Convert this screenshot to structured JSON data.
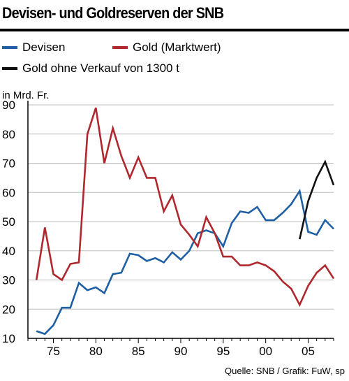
{
  "chart_data": {
    "type": "line",
    "title": "Devisen- und Goldreserven der SNB",
    "ylabel": "in Mrd. Fr.",
    "source": "Quelle: SNB / Grafik: FuW, sp",
    "xlim": [
      1972,
      2008
    ],
    "ylim": [
      10,
      90
    ],
    "legend_position": "top",
    "grid": true,
    "x_ticks": [
      {
        "value": 1975,
        "label": "75"
      },
      {
        "value": 1980,
        "label": "80"
      },
      {
        "value": 1985,
        "label": "85"
      },
      {
        "value": 1990,
        "label": "90"
      },
      {
        "value": 1995,
        "label": "95"
      },
      {
        "value": 2000,
        "label": "00"
      },
      {
        "value": 2005,
        "label": "05"
      }
    ],
    "y_ticks": [
      10,
      20,
      30,
      40,
      50,
      60,
      70,
      80,
      90
    ],
    "series": [
      {
        "name": "Devisen",
        "color": "#1f5fa3",
        "x": [
          1973,
          1974,
          1975,
          1976,
          1977,
          1978,
          1979,
          1980,
          1981,
          1982,
          1983,
          1984,
          1985,
          1986,
          1987,
          1988,
          1989,
          1990,
          1991,
          1992,
          1993,
          1994,
          1995,
          1996,
          1997,
          1998,
          1999,
          2000,
          2001,
          2002,
          2003,
          2004,
          2005,
          2006,
          2007,
          2008
        ],
        "y": [
          12.5,
          11.5,
          14.5,
          20.5,
          20.5,
          29,
          26.5,
          27.5,
          25.5,
          32,
          32.5,
          39,
          38.5,
          36.5,
          37.5,
          36,
          39.5,
          37,
          40,
          46,
          47,
          46,
          41.5,
          49.5,
          53.5,
          53,
          55,
          50.5,
          50.5,
          53,
          56,
          60.5,
          46.5,
          45.5,
          50.5,
          47.5
        ]
      },
      {
        "name": "Gold (Marktwert)",
        "color": "#b0282e",
        "x": [
          1973,
          1974,
          1975,
          1976,
          1977,
          1978,
          1979,
          1980,
          1981,
          1982,
          1983,
          1984,
          1985,
          1986,
          1987,
          1988,
          1989,
          1990,
          1991,
          1992,
          1993,
          1994,
          1995,
          1996,
          1997,
          1998,
          1999,
          2000,
          2001,
          2002,
          2003,
          2004,
          2005,
          2006,
          2007,
          2008
        ],
        "y": [
          30,
          48,
          32,
          30,
          35.5,
          36,
          80,
          89,
          70,
          82,
          72.5,
          65,
          72,
          65,
          65,
          53.5,
          59,
          49,
          45.5,
          41.5,
          51.5,
          46,
          38,
          38,
          35,
          35,
          36,
          35,
          33,
          29.5,
          27,
          21.5,
          28,
          32.5,
          35,
          30.5
        ]
      },
      {
        "name": "Gold ohne Verkauf von 1300 t",
        "color": "#111111",
        "x": [
          2004,
          2005,
          2006,
          2007,
          2008
        ],
        "y": [
          44,
          57,
          65,
          70.5,
          62.5
        ]
      }
    ]
  }
}
